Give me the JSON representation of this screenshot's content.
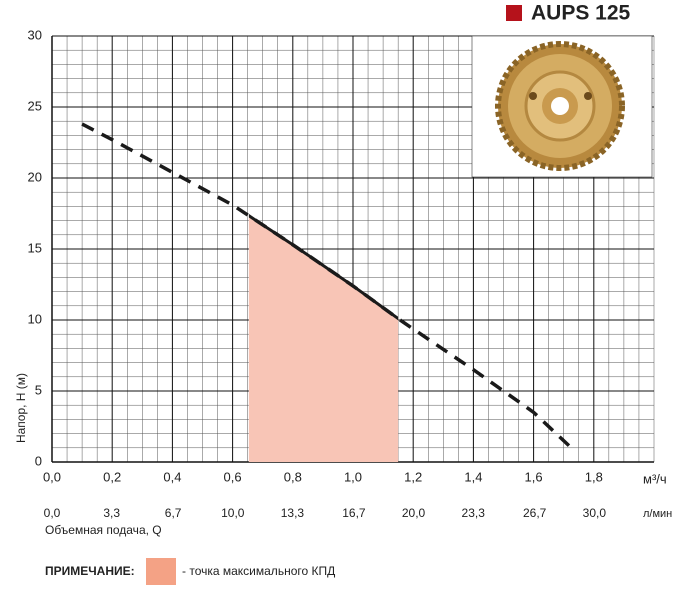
{
  "chart_data": {
    "type": "line",
    "title": "AUPS 125",
    "title_marker_color": "#b5121b",
    "ylabel": "Напор, Н (м)",
    "xlabel": "Объемная подача, Q",
    "xunit": "м³/ч",
    "x2unit": "л/мин",
    "xlim": [
      0,
      2.0
    ],
    "ylim": [
      0,
      30
    ],
    "x2lim": [
      0,
      33.3
    ],
    "xticks": [
      {
        "value": 0,
        "label": "0,0"
      },
      {
        "value": 0.2,
        "label": "0,2"
      },
      {
        "value": 0.4,
        "label": "0,4"
      },
      {
        "value": 0.6,
        "label": "0,6"
      },
      {
        "value": 0.8,
        "label": "0,8"
      },
      {
        "value": 1.0,
        "label": "1,0"
      },
      {
        "value": 1.2,
        "label": "1,2"
      },
      {
        "value": 1.4,
        "label": "1,4"
      },
      {
        "value": 1.6,
        "label": "1,6"
      },
      {
        "value": 1.8,
        "label": "1,8"
      }
    ],
    "x2ticks": [
      {
        "value": 0,
        "label": "0,0"
      },
      {
        "value": 3.3,
        "label": "3,3"
      },
      {
        "value": 6.7,
        "label": "6,7"
      },
      {
        "value": 10,
        "label": "10,0"
      },
      {
        "value": 13.3,
        "label": "13,3"
      },
      {
        "value": 16.7,
        "label": "16,7"
      },
      {
        "value": 20,
        "label": "20,0"
      },
      {
        "value": 23.3,
        "label": "23,3"
      },
      {
        "value": 26.7,
        "label": "26,7"
      },
      {
        "value": 30,
        "label": "30,0"
      }
    ],
    "yticks": [
      0,
      5,
      10,
      15,
      20,
      25,
      30
    ],
    "grid": true,
    "minor_grid": {
      "x": 0.05,
      "y": 1
    },
    "x": [
      0.1,
      0.2,
      0.4,
      0.6,
      0.65,
      0.8,
      1.0,
      1.15,
      1.17,
      1.4,
      1.6,
      1.72
    ],
    "series": [
      {
        "color": "#1a1a1a",
        "values": [
          23.8,
          22.7,
          20.4,
          18.1,
          17.4,
          15.3,
          12.4,
          10.1,
          9.8,
          6.5,
          3.5,
          1.1
        ]
      }
    ],
    "highlight": {
      "xrange": [
        0.654,
        1.15
      ],
      "color": "#f8c5b6"
    },
    "note": {
      "label": "ПРИМЕЧАНИЕ:",
      "text": "- точка максимального КПД",
      "color": "#f4a285"
    }
  }
}
